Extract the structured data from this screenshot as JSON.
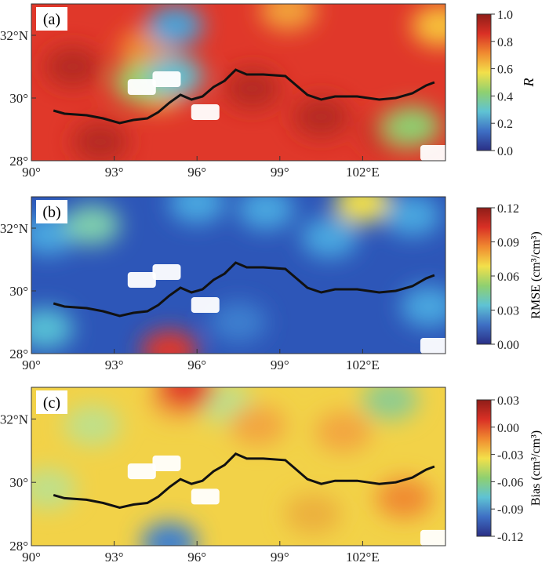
{
  "panels": [
    {
      "id": "a",
      "label": "(a)",
      "x_ticks": [
        "90°",
        "93°",
        "96°",
        "99°",
        "102°E"
      ],
      "y_ticks": [
        "32°N",
        "30°",
        "28°"
      ],
      "colorbar": {
        "title": "R",
        "title_italic": true,
        "ticks": [
          "1.0",
          "0.8",
          "0.6",
          "0.4",
          "0.2",
          "0.0"
        ]
      },
      "field": {
        "base": "#e0382a",
        "patches": [
          {
            "color": "#b52a22",
            "lon": 91.5,
            "lat": 31.0
          },
          {
            "color": "#b52a22",
            "lon": 98.0,
            "lat": 30.3
          },
          {
            "color": "#b52a22",
            "lon": 100.5,
            "lat": 29.4
          },
          {
            "color": "#b52a22",
            "lon": 92.5,
            "lat": 28.6
          },
          {
            "color": "#c43028",
            "lon": 103.0,
            "lat": 28.9
          },
          {
            "color": "#f08a30",
            "lon": 94.2,
            "lat": 31.6
          },
          {
            "color": "#f6c23a",
            "lon": 94.6,
            "lat": 30.3
          },
          {
            "color": "#9cd36a",
            "lon": 94.0,
            "lat": 30.5
          },
          {
            "color": "#5fc3d4",
            "lon": 95.2,
            "lat": 30.7
          },
          {
            "color": "#4aa3d8",
            "lon": 95.2,
            "lat": 32.3
          },
          {
            "color": "#8fd070",
            "lon": 103.8,
            "lat": 29.1
          },
          {
            "color": "#f7c23a",
            "lon": 104.8,
            "lat": 32.3
          },
          {
            "color": "#f2a23a",
            "lon": 99.3,
            "lat": 32.8
          }
        ]
      }
    },
    {
      "id": "b",
      "label": "(b)",
      "x_ticks": [
        "90°",
        "93°",
        "96°",
        "99°",
        "102°E"
      ],
      "y_ticks": [
        "32°N",
        "30°",
        "28°"
      ],
      "colorbar": {
        "title": "RMSE (cm³/cm³)",
        "title_italic": false,
        "ticks": [
          "0.12",
          "0.09",
          "0.06",
          "0.03",
          "0.00"
        ]
      },
      "field": {
        "base": "#2d56b8",
        "patches": [
          {
            "color": "#4aa7e0",
            "lon": 90.6,
            "lat": 31.8
          },
          {
            "color": "#7fcfae",
            "lon": 92.2,
            "lat": 32.1
          },
          {
            "color": "#56c0d6",
            "lon": 90.5,
            "lat": 28.8
          },
          {
            "color": "#4aa7e0",
            "lon": 96.0,
            "lat": 32.8
          },
          {
            "color": "#4aa7e0",
            "lon": 98.5,
            "lat": 32.6
          },
          {
            "color": "#f3e04a",
            "lon": 102.0,
            "lat": 32.8
          },
          {
            "color": "#4aa7e0",
            "lon": 103.8,
            "lat": 32.4
          },
          {
            "color": "#4aa7e0",
            "lon": 100.8,
            "lat": 31.7
          },
          {
            "color": "#3c7fcf",
            "lon": 97.5,
            "lat": 29.0
          },
          {
            "color": "#4aa7e0",
            "lon": 104.4,
            "lat": 29.5
          },
          {
            "color": "#e0382a",
            "lon": 95.0,
            "lat": 28.1
          }
        ]
      }
    },
    {
      "id": "c",
      "label": "(c)",
      "x_ticks": [
        "90°",
        "93°",
        "96°",
        "99°",
        "102°E"
      ],
      "y_ticks": [
        "32°N",
        "30°",
        "28°"
      ],
      "colorbar": {
        "title": "Bias (cm³/cm³)",
        "title_italic": false,
        "ticks": [
          "0.03",
          "0.00",
          "-0.03",
          "-0.06",
          "-0.09",
          "-0.12"
        ]
      },
      "field": {
        "base": "#f2d248",
        "patches": [
          {
            "color": "#bfe08a",
            "lon": 92.2,
            "lat": 31.8
          },
          {
            "color": "#bfe08a",
            "lon": 97.0,
            "lat": 32.5
          },
          {
            "color": "#bfe08a",
            "lon": 90.6,
            "lat": 29.8
          },
          {
            "color": "#f3a640",
            "lon": 95.3,
            "lat": 32.6
          },
          {
            "color": "#f3a640",
            "lon": 98.2,
            "lat": 31.8
          },
          {
            "color": "#e0382a",
            "lon": 95.6,
            "lat": 33.0
          },
          {
            "color": "#f3a640",
            "lon": 101.3,
            "lat": 31.6
          },
          {
            "color": "#ecb03c",
            "lon": 100.2,
            "lat": 29.0
          },
          {
            "color": "#f08a30",
            "lon": 103.5,
            "lat": 29.5
          },
          {
            "color": "#8fcc8f",
            "lon": 103.0,
            "lat": 32.6
          },
          {
            "color": "#3c7fcf",
            "lon": 95.0,
            "lat": 28.1
          }
        ]
      }
    }
  ],
  "map_data": {
    "lon_range": [
      90,
      105
    ],
    "lat_range": [
      28,
      33
    ],
    "boundary_line": [
      [
        90.8,
        29.6
      ],
      [
        91.2,
        29.5
      ],
      [
        92.0,
        29.45
      ],
      [
        92.6,
        29.35
      ],
      [
        93.2,
        29.2
      ],
      [
        93.7,
        29.3
      ],
      [
        94.2,
        29.35
      ],
      [
        94.6,
        29.55
      ],
      [
        95.0,
        29.85
      ],
      [
        95.4,
        30.1
      ],
      [
        95.8,
        29.95
      ],
      [
        96.2,
        30.05
      ],
      [
        96.6,
        30.35
      ],
      [
        97.0,
        30.55
      ],
      [
        97.4,
        30.9
      ],
      [
        97.8,
        30.75
      ],
      [
        98.4,
        30.75
      ],
      [
        99.2,
        30.7
      ],
      [
        99.6,
        30.4
      ],
      [
        100.0,
        30.1
      ],
      [
        100.5,
        29.95
      ],
      [
        101.0,
        30.05
      ],
      [
        101.8,
        30.05
      ],
      [
        102.2,
        30.0
      ],
      [
        102.6,
        29.95
      ],
      [
        103.2,
        30.0
      ],
      [
        103.8,
        30.15
      ],
      [
        104.3,
        30.4
      ],
      [
        104.6,
        30.5
      ]
    ],
    "masked_areas": [
      {
        "lon": 94.0,
        "lat": 30.3
      },
      {
        "lon": 94.9,
        "lat": 30.55
      },
      {
        "lon": 96.3,
        "lat": 29.5
      },
      {
        "lon": 104.6,
        "lat": 28.2
      }
    ]
  },
  "colorscales": {
    "R": [
      "#2a2f86",
      "#3e6fc4",
      "#5fc3d4",
      "#8fd070",
      "#f3e04a",
      "#f08a30",
      "#d93025",
      "#8f1d18"
    ],
    "RMSE": [
      "#2a2f86",
      "#3e6fc4",
      "#5fc3d4",
      "#8fd070",
      "#f3e04a",
      "#f08a30",
      "#d93025",
      "#8f1d18"
    ],
    "Bias": [
      "#2a2f86",
      "#3e6fc4",
      "#5fc3d4",
      "#8fd070",
      "#f3e04a",
      "#f08a30",
      "#d93025",
      "#8f1d18"
    ]
  }
}
